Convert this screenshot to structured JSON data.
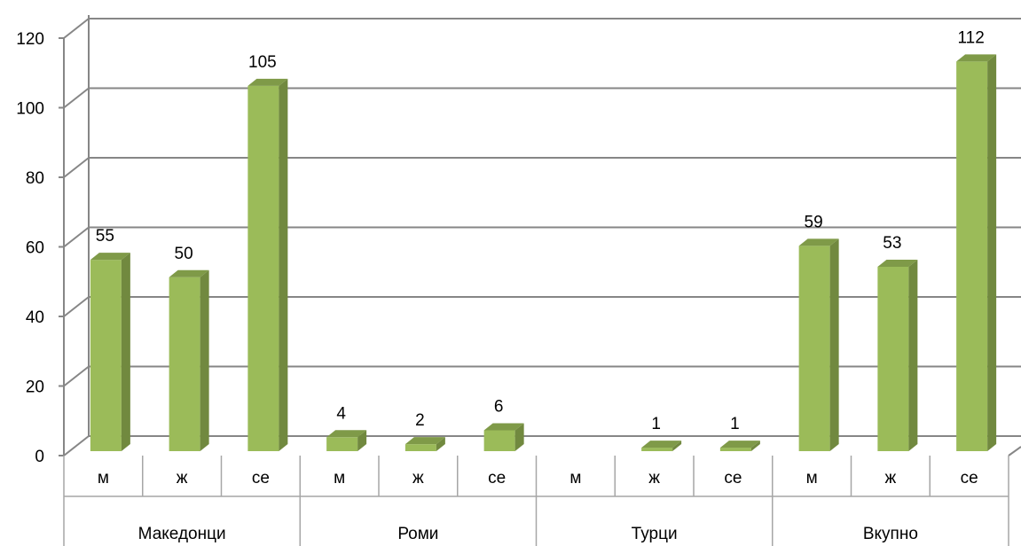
{
  "chart_data": {
    "type": "bar",
    "style": "3d-column",
    "groups": [
      "Македонци",
      "Роми",
      "Турци",
      "Вкупно"
    ],
    "categories": [
      {
        "group": "Македонци",
        "label": "м"
      },
      {
        "group": "Македонци",
        "label": "ж"
      },
      {
        "group": "Македонци",
        "label": "се"
      },
      {
        "group": "Роми",
        "label": "м"
      },
      {
        "group": "Роми",
        "label": "ж"
      },
      {
        "group": "Роми",
        "label": "се"
      },
      {
        "group": "Турци",
        "label": "м"
      },
      {
        "group": "Турци",
        "label": "ж"
      },
      {
        "group": "Турци",
        "label": "се"
      },
      {
        "group": "Вкупно",
        "label": "м"
      },
      {
        "group": "Вкупно",
        "label": "ж"
      },
      {
        "group": "Вкупно",
        "label": "се"
      }
    ],
    "values": [
      55,
      50,
      105,
      4,
      2,
      6,
      null,
      1,
      1,
      59,
      53,
      112
    ],
    "data_labels": [
      "55",
      "50",
      "105",
      "4",
      "2",
      "6",
      "",
      "1",
      "1",
      "59",
      "53",
      "112"
    ],
    "y_ticks": [
      "0",
      "20",
      "40",
      "60",
      "80",
      "100",
      "120"
    ],
    "ylim": [
      0,
      120
    ],
    "grid": true,
    "legend": "none",
    "title": "",
    "xlabel": "",
    "ylabel": "",
    "colors": {
      "bar_front": "#9bbb59",
      "bar_side": "#71893f",
      "bar_top": "#7f9a48",
      "gridline": "#868686",
      "axis": "#868686",
      "table_border": "#a6a6a6"
    }
  }
}
